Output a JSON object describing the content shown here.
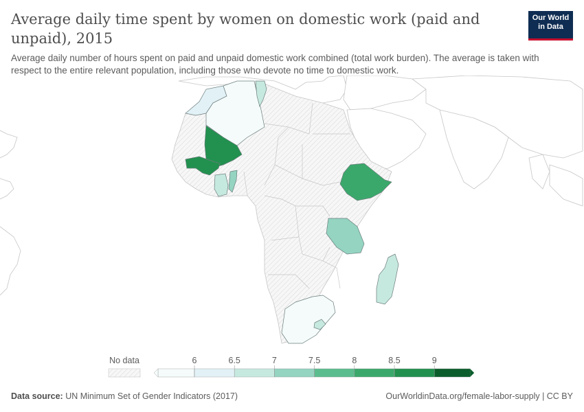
{
  "header": {
    "title": "Average daily time spent by women on domestic work (paid and unpaid), 2015",
    "subtitle": "Average daily number of hours spent on paid and unpaid domestic work combined (total work burden). The average is taken with respect to the entire relevant population, including those who devote no time to domestic work.",
    "logo_line1": "Our World",
    "logo_line2": "in Data"
  },
  "legend": {
    "no_data_label": "No data",
    "ticks": [
      "6",
      "6.5",
      "7",
      "7.5",
      "8",
      "8.5",
      "9"
    ],
    "bin_colors": [
      "#f4fbfa",
      "#e2f1f6",
      "#c6e9df",
      "#94d4c1",
      "#5bbd8e",
      "#3ba86b",
      "#22914f",
      "#0b5e2c"
    ],
    "no_data_color": "#f2f2f2"
  },
  "map_data": {
    "type": "choropleth",
    "region": "Africa",
    "year": 2015,
    "countries": [
      {
        "name": "Morocco",
        "value": 6.3,
        "color": "#e2f1f6"
      },
      {
        "name": "Algeria",
        "value": 5.9,
        "color": "#f4fbfa"
      },
      {
        "name": "Tunisia",
        "value": 6.8,
        "color": "#c6e9df"
      },
      {
        "name": "Mali",
        "value": 8.6,
        "color": "#22914f"
      },
      {
        "name": "Guinea",
        "value": 8.9,
        "color": "#22914f"
      },
      {
        "name": "Ghana",
        "value": 7.0,
        "color": "#c6e9df"
      },
      {
        "name": "Benin",
        "value": 7.2,
        "color": "#94d4c1"
      },
      {
        "name": "Ethiopia",
        "value": 8.2,
        "color": "#3ba86b"
      },
      {
        "name": "Tanzania",
        "value": 7.5,
        "color": "#94d4c1"
      },
      {
        "name": "Madagascar",
        "value": 6.8,
        "color": "#c6e9df"
      },
      {
        "name": "South Africa",
        "value": 5.9,
        "color": "#f4fbfa"
      },
      {
        "name": "Lesotho",
        "value": 6.8,
        "color": "#c6e9df"
      }
    ]
  },
  "footer": {
    "source_label": "Data source:",
    "source_text": "UN Minimum Set of Gender Indicators (2017)",
    "right_text": "OurWorldinData.org/female-labor-supply | CC BY"
  }
}
